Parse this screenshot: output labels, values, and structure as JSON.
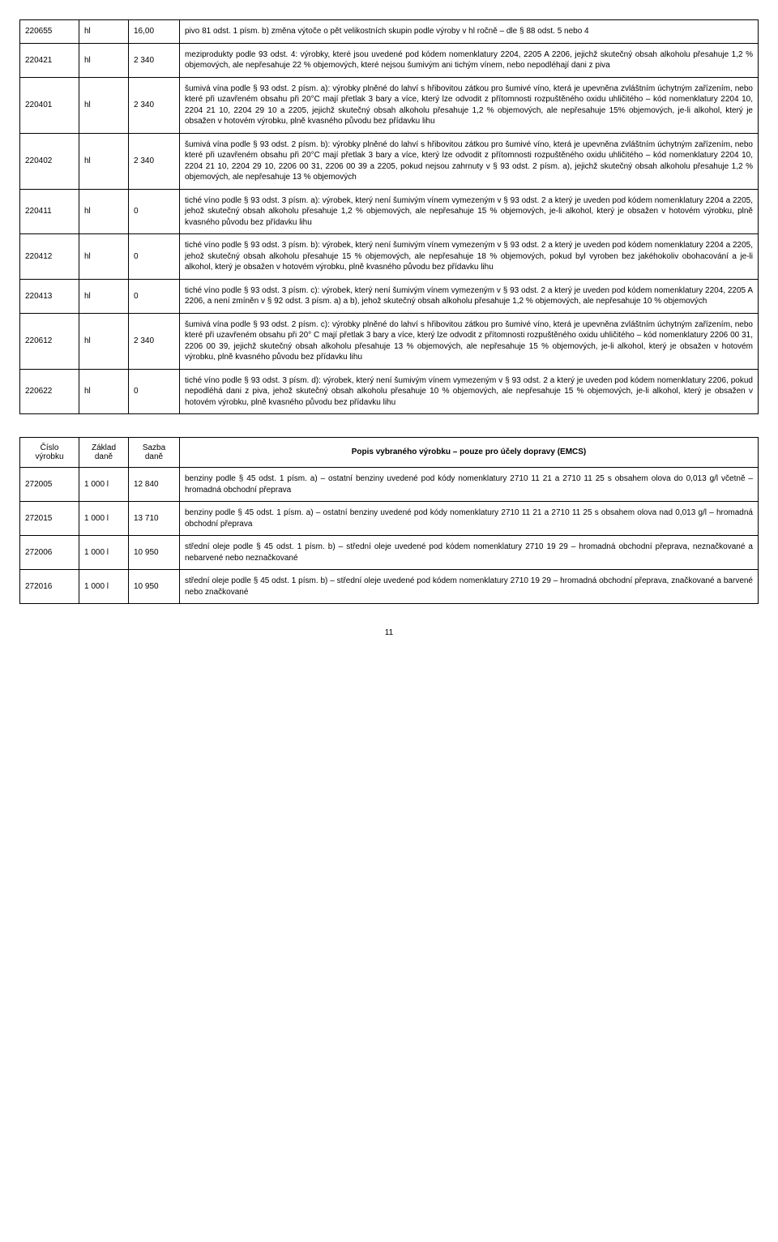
{
  "table1": {
    "rows": [
      {
        "code": "220655",
        "unit": "hl",
        "rate": "16,00",
        "desc": "pivo 81 odst. 1 písm. b) změna výtoče o pět velikostních skupin podle výroby v hl ročně – dle § 88 odst. 5 nebo 4"
      },
      {
        "code": "220421",
        "unit": "hl",
        "rate": "2 340",
        "desc": "meziprodukty podle 93 odst. 4: výrobky, které jsou uvedené pod kódem nomenklatury 2204, 2205 A 2206, jejichž skutečný obsah alkoholu přesahuje 1,2 % objemových, ale nepřesahuje 22 % objemových, které nejsou šumivým ani tichým vínem, nebo nepodléhají dani z piva"
      },
      {
        "code": "220401",
        "unit": "hl",
        "rate": "2 340",
        "desc": "šumivá vína podle § 93 odst. 2 písm. a): výrobky plněné do lahví s hřibovitou zátkou pro šumivé víno, která je upevněna zvláštním úchytným zařízením, nebo které při uzavřeném obsahu při 20°C mají přetlak 3 bary a více, který lze odvodit z přítomnosti rozpuštěného oxidu uhličitého – kód nomenklatury 2204 10, 2204 21 10, 2204 29 10 a 2205, jejichž skutečný obsah alkoholu přesahuje 1,2 % objemových, ale nepřesahuje 15% objemových, je-li alkohol, který je obsažen v hotovém výrobku, plně kvasného původu bez přídavku lihu"
      },
      {
        "code": "220402",
        "unit": "hl",
        "rate": "2 340",
        "desc": "šumivá vína podle § 93 odst. 2 písm. b): výrobky plněné do lahví s hřibovitou zátkou pro šumivé víno, která je upevněna zvláštním úchytným zařízením, nebo které při uzavřeném obsahu při 20°C mají přetlak 3 bary a více, který lze odvodit z přítomnosti rozpuštěného oxidu uhličitého – kód nomenklatury 2204 10, 2204 21 10, 2204 29 10, 2206 00 31, 2206 00 39 a 2205, pokud nejsou zahrnuty v § 93 odst. 2 písm. a), jejichž skutečný obsah alkoholu přesahuje 1,2 % objemových, ale nepřesahuje 13 % objemových"
      },
      {
        "code": "220411",
        "unit": "hl",
        "rate": "0",
        "desc": "tiché víno podle § 93 odst. 3 písm. a): výrobek, který není šumivým vínem vymezeným v § 93 odst. 2 a který je uveden pod kódem nomenklatury 2204 a 2205, jehož skutečný obsah alkoholu přesahuje 1,2 % objemových, ale nepřesahuje 15 % objemových, je-li alkohol, který je obsažen v hotovém výrobku, plně kvasného původu bez přídavku lihu"
      },
      {
        "code": "220412",
        "unit": "hl",
        "rate": "0",
        "desc": "tiché víno podle § 93 odst. 3 písm. b): výrobek, který není šumivým vínem vymezeným v § 93 odst. 2 a který je uveden pod kódem nomenklatury 2204 a 2205, jehož skutečný obsah alkoholu přesahuje 15 % objemových, ale nepřesahuje 18 % objemových, pokud byl vyroben bez jakéhokoliv obohacování a je-li alkohol, který je obsažen v hotovém výrobku, plně kvasného původu bez přídavku lihu"
      },
      {
        "code": "220413",
        "unit": "hl",
        "rate": "0",
        "desc": "tiché víno podle § 93 odst. 3 písm. c): výrobek, který není šumivým vínem vymezeným v § 93 odst. 2 a který je uveden pod kódem nomenklatury 2204, 2205 A 2206, a není zmíněn v § 92 odst. 3 písm. a) a b), jehož skutečný obsah alkoholu přesahuje 1,2 % objemových, ale nepřesahuje 10 % objemových"
      },
      {
        "code": "220612",
        "unit": "hl",
        "rate": "2 340",
        "desc": "šumivá vína podle § 93 odst. 2 písm. c): výrobky plněné do lahví s hřibovitou zátkou pro šumivé víno, která je upevněna zvláštním úchytným zařízením, nebo které při uzavřeném obsahu při 20° C mají přetlak 3 bary a více, který lze odvodit z přítomnosti rozpuštěného oxidu uhličitého – kód nomenklatury 2206 00 31, 2206 00 39, jejichž skutečný obsah alkoholu přesahuje 13 % objemových, ale nepřesahuje 15 % objemových, je-li alkohol, který je obsažen v hotovém výrobku, plně kvasného původu bez přídavku lihu"
      },
      {
        "code": "220622",
        "unit": "hl",
        "rate": "0",
        "desc": "tiché víno podle § 93 odst. 3 písm. d): výrobek, který není šumivým vínem vymezeným v § 93 odst. 2 a který je uveden pod kódem nomenklatury 2206, pokud nepodléhá dani z piva, jehož skutečný obsah alkoholu přesahuje 10 % objemových, ale nepřesahuje 15 % objemových, je-li alkohol, který je obsažen v hotovém výrobku, plně kvasného původu bez přídavku lihu"
      }
    ]
  },
  "table2": {
    "headers": {
      "code": "Číslo výrobku",
      "unit": "Základ daně",
      "rate": "Sazba daně",
      "desc": "Popis vybraného výrobku – pouze pro účely dopravy (EMCS)"
    },
    "rows": [
      {
        "code": "272005",
        "unit": "1 000 l",
        "rate": "12 840",
        "desc": "benziny podle § 45 odst. 1 písm. a) – ostatní benziny uvedené pod kódy nomenklatury 2710 11 21 a 2710 11 25 s obsahem olova do 0,013 g/l včetně – hromadná obchodní přeprava"
      },
      {
        "code": "272015",
        "unit": "1 000 l",
        "rate": "13 710",
        "desc": "benziny podle § 45 odst. 1 písm. a) – ostatní benziny uvedené pod kódy nomenklatury 2710 11 21 a 2710 11 25 s obsahem olova nad 0,013 g/l – hromadná obchodní přeprava"
      },
      {
        "code": "272006",
        "unit": "1 000 l",
        "rate": "10 950",
        "desc": "střední oleje podle § 45 odst. 1 písm. b) – střední oleje uvedené pod kódem nomenklatury 2710 19 29 – hromadná obchodní přeprava, neznačkované a nebarvené nebo neznačkované"
      },
      {
        "code": "272016",
        "unit": "1 000 l",
        "rate": "10 950",
        "desc": "střední oleje podle § 45 odst. 1 písm. b) – střední oleje uvedené pod kódem nomenklatury 2710 19 29 – hromadná obchodní přeprava, značkované a barvené nebo značkované"
      }
    ]
  },
  "pageNumber": "11"
}
